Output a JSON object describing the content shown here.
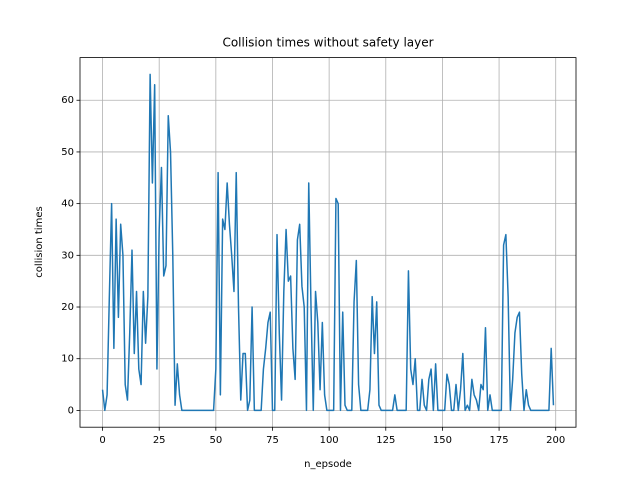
{
  "chart_data": {
    "type": "line",
    "title": "Collision times without safety layer",
    "xlabel": "n_epsode",
    "ylabel": "collision times",
    "x": [
      0,
      1,
      2,
      3,
      4,
      5,
      6,
      7,
      8,
      9,
      10,
      11,
      12,
      13,
      14,
      15,
      16,
      17,
      18,
      19,
      20,
      21,
      22,
      23,
      24,
      25,
      26,
      27,
      28,
      29,
      30,
      31,
      32,
      33,
      34,
      35,
      36,
      37,
      38,
      39,
      40,
      41,
      42,
      43,
      44,
      45,
      46,
      47,
      48,
      49,
      50,
      51,
      52,
      53,
      54,
      55,
      56,
      57,
      58,
      59,
      60,
      61,
      62,
      63,
      64,
      65,
      66,
      67,
      68,
      69,
      70,
      71,
      72,
      73,
      74,
      75,
      76,
      77,
      78,
      79,
      80,
      81,
      82,
      83,
      84,
      85,
      86,
      87,
      88,
      89,
      90,
      91,
      92,
      93,
      94,
      95,
      96,
      97,
      98,
      99,
      100,
      101,
      102,
      103,
      104,
      105,
      106,
      107,
      108,
      109,
      110,
      111,
      112,
      113,
      114,
      115,
      116,
      117,
      118,
      119,
      120,
      121,
      122,
      123,
      124,
      125,
      126,
      127,
      128,
      129,
      130,
      131,
      132,
      133,
      134,
      135,
      136,
      137,
      138,
      139,
      140,
      141,
      142,
      143,
      144,
      145,
      146,
      147,
      148,
      149,
      150,
      151,
      152,
      153,
      154,
      155,
      156,
      157,
      158,
      159,
      160,
      161,
      162,
      163,
      164,
      165,
      166,
      167,
      168,
      169,
      170,
      171,
      172,
      173,
      174,
      175,
      176,
      177,
      178,
      179,
      180,
      181,
      182,
      183,
      184,
      185,
      186,
      187,
      188,
      189,
      190,
      191,
      192,
      193,
      194,
      195,
      196,
      197,
      198,
      199
    ],
    "series": [
      {
        "name": "collision times",
        "color": "#1f77b4",
        "values": [
          4,
          0,
          3,
          22,
          40,
          12,
          37,
          18,
          36,
          30,
          5,
          2,
          15,
          31,
          11,
          23,
          8,
          5,
          23,
          13,
          22,
          65,
          44,
          63,
          8,
          35,
          47,
          26,
          28,
          57,
          50,
          30,
          1,
          9,
          3,
          0,
          0,
          0,
          0,
          0,
          0,
          0,
          0,
          0,
          0,
          0,
          0,
          0,
          0,
          0,
          8,
          46,
          3,
          37,
          35,
          44,
          36,
          30,
          23,
          46,
          20,
          2,
          11,
          11,
          0,
          2,
          20,
          0,
          0,
          0,
          0,
          8,
          12,
          17,
          19,
          0,
          0,
          34,
          15,
          2,
          23,
          35,
          25,
          26,
          12,
          6,
          33,
          36,
          24,
          20,
          0,
          44,
          20,
          0,
          23,
          17,
          4,
          17,
          3,
          0,
          0,
          0,
          0,
          41,
          40,
          0,
          19,
          1,
          0,
          0,
          0,
          21,
          29,
          5,
          0,
          0,
          0,
          0,
          4,
          22,
          11,
          21,
          1,
          0,
          0,
          0,
          0,
          0,
          0,
          3,
          0,
          0,
          0,
          0,
          0,
          27,
          8,
          5,
          10,
          0,
          0,
          6,
          1,
          0,
          6,
          8,
          0,
          9,
          0,
          0,
          0,
          0,
          7,
          5,
          0,
          0,
          5,
          0,
          4,
          11,
          0,
          1,
          0,
          6,
          3,
          2,
          0,
          5,
          4,
          16,
          0,
          3,
          0,
          0,
          0,
          0,
          0,
          32,
          34,
          22,
          0,
          6,
          15,
          18,
          19,
          7,
          0,
          4,
          1,
          0,
          0,
          0,
          0,
          0,
          0,
          0,
          0,
          0,
          12,
          1
        ]
      }
    ],
    "xlim": [
      -9.95,
      208.95
    ],
    "ylim": [
      -3.25,
      68.25
    ],
    "xticks": [
      0,
      25,
      50,
      75,
      100,
      125,
      150,
      175,
      200
    ],
    "yticks": [
      0,
      10,
      20,
      30,
      40,
      50,
      60
    ],
    "grid": true
  }
}
